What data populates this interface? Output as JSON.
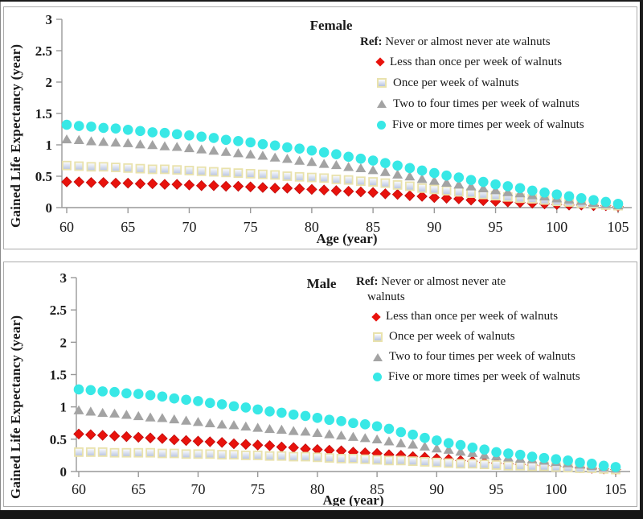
{
  "colors": {
    "red": "#e8120c",
    "red_stroke": "#c00c0c",
    "square_border": "#e9e2ac",
    "square_fill_top": "#ffffff",
    "square_fill_bottom": "#b5c2e0",
    "gray": "#a3a3a3",
    "cyan": "#38e8e6",
    "axis": "#999999",
    "text": "#1a1a1a",
    "panel_border": "#ababab",
    "frame": "#1b1b1b"
  },
  "chart_data": [
    {
      "type": "scatter",
      "title": "Female",
      "xlabel": "Age (year)",
      "ylabel": "Gained Life Expectancy (year)",
      "legend": {
        "ref_label": "Ref:",
        "ref_text": " Never or almost never ate walnuts",
        "ref_text2": ""
      },
      "xlim": [
        60,
        105
      ],
      "ylim": [
        0,
        3
      ],
      "x_ticks": [
        60,
        65,
        70,
        75,
        80,
        85,
        90,
        95,
        100,
        105
      ],
      "y_ticks": [
        "0",
        "0.5",
        "1",
        "1.5",
        "2",
        "2.5",
        "3"
      ],
      "grid": false,
      "legend_position": "top-right",
      "x": [
        60,
        61,
        62,
        63,
        64,
        65,
        66,
        67,
        68,
        69,
        70,
        71,
        72,
        73,
        74,
        75,
        76,
        77,
        78,
        79,
        80,
        81,
        82,
        83,
        84,
        85,
        86,
        87,
        88,
        89,
        90,
        91,
        92,
        93,
        94,
        95,
        96,
        97,
        98,
        99,
        100,
        101,
        102,
        103,
        104,
        105
      ],
      "series": [
        {
          "name": "Less than once per week of walnuts",
          "marker": "diamond",
          "color": "#e8120c",
          "values": [
            0.41,
            0.41,
            0.4,
            0.4,
            0.39,
            0.39,
            0.38,
            0.38,
            0.37,
            0.37,
            0.36,
            0.35,
            0.35,
            0.34,
            0.34,
            0.33,
            0.32,
            0.31,
            0.31,
            0.3,
            0.29,
            0.28,
            0.27,
            0.26,
            0.25,
            0.24,
            0.22,
            0.21,
            0.19,
            0.18,
            0.16,
            0.15,
            0.14,
            0.12,
            0.11,
            0.1,
            0.09,
            0.08,
            0.07,
            0.06,
            0.05,
            0.04,
            0.04,
            0.03,
            0.03,
            0.02
          ]
        },
        {
          "name": "Once per week of walnuts",
          "marker": "square",
          "color": "#b5c2e0",
          "values": [
            0.67,
            0.66,
            0.65,
            0.65,
            0.64,
            0.63,
            0.62,
            0.61,
            0.61,
            0.6,
            0.59,
            0.58,
            0.57,
            0.56,
            0.55,
            0.54,
            0.53,
            0.52,
            0.5,
            0.49,
            0.48,
            0.47,
            0.45,
            0.44,
            0.42,
            0.41,
            0.39,
            0.36,
            0.34,
            0.31,
            0.29,
            0.27,
            0.25,
            0.23,
            0.21,
            0.19,
            0.17,
            0.15,
            0.14,
            0.12,
            0.1,
            0.09,
            0.07,
            0.06,
            0.04,
            0.03
          ]
        },
        {
          "name": "Two to four times per week of walnuts",
          "marker": "triangle",
          "color": "#a3a3a3",
          "values": [
            1.09,
            1.08,
            1.06,
            1.05,
            1.04,
            1.03,
            1.01,
            1.0,
            0.98,
            0.97,
            0.95,
            0.93,
            0.91,
            0.89,
            0.87,
            0.85,
            0.83,
            0.8,
            0.78,
            0.75,
            0.73,
            0.7,
            0.68,
            0.65,
            0.63,
            0.6,
            0.57,
            0.53,
            0.5,
            0.46,
            0.43,
            0.4,
            0.37,
            0.34,
            0.31,
            0.28,
            0.25,
            0.23,
            0.2,
            0.18,
            0.15,
            0.13,
            0.11,
            0.08,
            0.06,
            0.04
          ]
        },
        {
          "name": "Five or more times per week of walnuts",
          "marker": "circle",
          "color": "#38e8e6",
          "values": [
            1.32,
            1.3,
            1.29,
            1.27,
            1.26,
            1.24,
            1.22,
            1.2,
            1.19,
            1.17,
            1.15,
            1.13,
            1.11,
            1.08,
            1.06,
            1.04,
            1.01,
            0.99,
            0.96,
            0.94,
            0.91,
            0.88,
            0.85,
            0.81,
            0.78,
            0.75,
            0.71,
            0.67,
            0.63,
            0.59,
            0.55,
            0.51,
            0.48,
            0.44,
            0.41,
            0.37,
            0.34,
            0.31,
            0.27,
            0.24,
            0.21,
            0.18,
            0.15,
            0.12,
            0.09,
            0.06
          ]
        }
      ]
    },
    {
      "type": "scatter",
      "title": "Male",
      "xlabel": "Age (year)",
      "ylabel": "Gained Life Expectancy (year)",
      "legend": {
        "ref_label": "Ref:",
        "ref_text": " Never or almost never ate",
        "ref_text2": "walnuts"
      },
      "xlim": [
        60,
        105
      ],
      "ylim": [
        0,
        3
      ],
      "x_ticks": [
        60,
        65,
        70,
        75,
        80,
        85,
        90,
        95,
        100,
        105
      ],
      "y_ticks": [
        "0",
        "0.5",
        "1",
        "1.5",
        "2",
        "2.5",
        "3"
      ],
      "grid": false,
      "legend_position": "top-right",
      "x": [
        60,
        61,
        62,
        63,
        64,
        65,
        66,
        67,
        68,
        69,
        70,
        71,
        72,
        73,
        74,
        75,
        76,
        77,
        78,
        79,
        80,
        81,
        82,
        83,
        84,
        85,
        86,
        87,
        88,
        89,
        90,
        91,
        92,
        93,
        94,
        95,
        96,
        97,
        98,
        99,
        100,
        101,
        102,
        103,
        104,
        105
      ],
      "series": [
        {
          "name": "Less than once per week of walnuts",
          "marker": "diamond",
          "color": "#e8120c",
          "values": [
            0.58,
            0.57,
            0.56,
            0.55,
            0.54,
            0.53,
            0.52,
            0.51,
            0.49,
            0.48,
            0.47,
            0.46,
            0.45,
            0.43,
            0.42,
            0.41,
            0.4,
            0.38,
            0.37,
            0.35,
            0.34,
            0.33,
            0.32,
            0.3,
            0.29,
            0.28,
            0.26,
            0.25,
            0.23,
            0.22,
            0.2,
            0.19,
            0.17,
            0.16,
            0.14,
            0.13,
            0.12,
            0.11,
            0.1,
            0.09,
            0.08,
            0.07,
            0.06,
            0.05,
            0.04,
            0.03
          ]
        },
        {
          "name": "Once per week of walnuts",
          "marker": "square",
          "color": "#b5c2e0",
          "values": [
            0.3,
            0.3,
            0.3,
            0.29,
            0.29,
            0.29,
            0.29,
            0.28,
            0.28,
            0.27,
            0.27,
            0.27,
            0.26,
            0.26,
            0.25,
            0.25,
            0.24,
            0.24,
            0.23,
            0.23,
            0.22,
            0.21,
            0.2,
            0.2,
            0.19,
            0.18,
            0.17,
            0.17,
            0.16,
            0.15,
            0.14,
            0.13,
            0.12,
            0.12,
            0.11,
            0.1,
            0.09,
            0.09,
            0.08,
            0.08,
            0.07,
            0.06,
            0.05,
            0.05,
            0.04,
            0.03
          ]
        },
        {
          "name": "Two to four times per week of walnuts",
          "marker": "triangle",
          "color": "#a3a3a3",
          "values": [
            0.95,
            0.93,
            0.91,
            0.9,
            0.88,
            0.86,
            0.84,
            0.83,
            0.81,
            0.79,
            0.77,
            0.75,
            0.73,
            0.72,
            0.7,
            0.68,
            0.66,
            0.65,
            0.63,
            0.62,
            0.6,
            0.58,
            0.56,
            0.54,
            0.52,
            0.5,
            0.47,
            0.44,
            0.42,
            0.39,
            0.36,
            0.34,
            0.31,
            0.29,
            0.26,
            0.24,
            0.22,
            0.2,
            0.19,
            0.17,
            0.15,
            0.13,
            0.11,
            0.09,
            0.07,
            0.05
          ]
        },
        {
          "name": "Five or more times per week of walnuts",
          "marker": "circle",
          "color": "#38e8e6",
          "values": [
            1.27,
            1.26,
            1.24,
            1.23,
            1.21,
            1.2,
            1.18,
            1.16,
            1.13,
            1.11,
            1.09,
            1.06,
            1.04,
            1.01,
            0.99,
            0.96,
            0.93,
            0.91,
            0.88,
            0.86,
            0.83,
            0.8,
            0.78,
            0.75,
            0.73,
            0.7,
            0.66,
            0.61,
            0.57,
            0.52,
            0.48,
            0.44,
            0.41,
            0.37,
            0.34,
            0.3,
            0.28,
            0.26,
            0.23,
            0.21,
            0.19,
            0.17,
            0.14,
            0.12,
            0.09,
            0.07
          ]
        }
      ]
    }
  ]
}
